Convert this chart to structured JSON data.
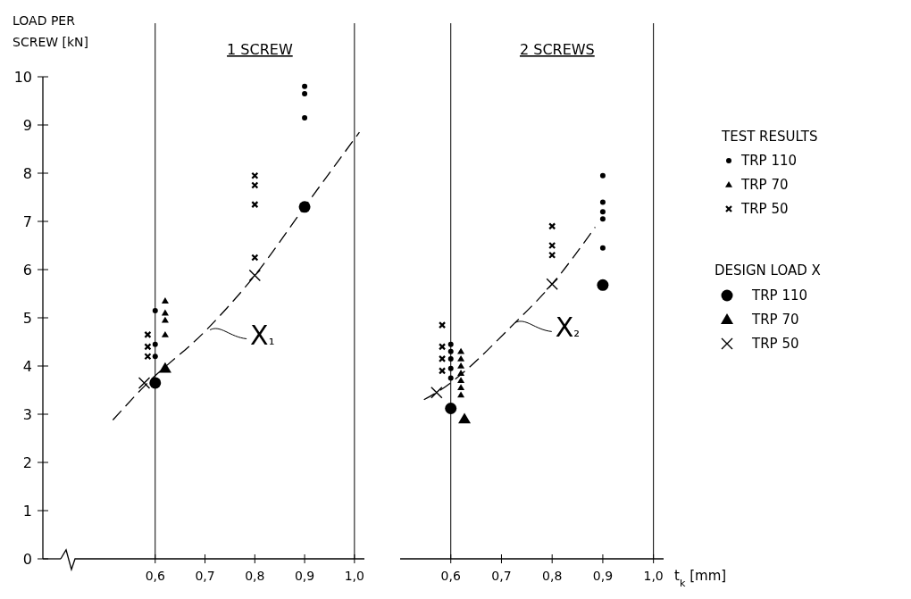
{
  "chart_data": [
    {
      "type": "scatter",
      "title": "1 SCREW",
      "ylabel": "LOAD PER SCREW [kN]",
      "xlim": [
        0.5,
        1.02
      ],
      "ylim": [
        0,
        10
      ],
      "xticks": [
        {
          "value": 0.6,
          "label": "0,6"
        },
        {
          "value": 0.7,
          "label": "0,7"
        },
        {
          "value": 0.8,
          "label": "0,8"
        },
        {
          "value": 0.9,
          "label": "0,9"
        },
        {
          "value": 1.0,
          "label": "1,0"
        }
      ],
      "yticks": [
        0,
        1,
        2,
        3,
        4,
        5,
        6,
        7,
        8,
        9,
        10
      ],
      "ref_lines": [
        {
          "axis": "x",
          "value": 0.6
        },
        {
          "axis": "x",
          "value": 1.0
        }
      ],
      "annotations": [
        {
          "text": "X₁",
          "x": 0.71,
          "y": 4.75
        }
      ],
      "series": [
        {
          "color": "#000000",
          "marker": "circle",
          "x": [
            0.6,
            0.6,
            0.6,
            0.9,
            0.9,
            0.9
          ],
          "values": [
            5.15,
            4.45,
            4.2,
            9.8,
            9.65,
            9.15
          ]
        },
        {
          "color": "#000000",
          "marker": "triangle",
          "x": [
            0.62,
            0.62,
            0.62,
            0.62
          ],
          "values": [
            5.35,
            5.1,
            4.95,
            4.65
          ]
        },
        {
          "color": "#000000",
          "marker": "cross",
          "x": [
            0.585,
            0.585,
            0.585,
            0.8,
            0.8,
            0.8,
            0.8
          ],
          "values": [
            4.65,
            4.4,
            4.2,
            7.95,
            7.75,
            7.35,
            6.25
          ]
        },
        {
          "color": "#000000",
          "marker": "circle",
          "x": [
            0.6,
            0.9
          ],
          "values": [
            3.65,
            7.3
          ]
        },
        {
          "color": "#000000",
          "marker": "triangle",
          "x": [
            0.62
          ],
          "values": [
            3.95
          ]
        },
        {
          "color": "#000000",
          "marker": "cross",
          "x": [
            0.578,
            0.8
          ],
          "values": [
            3.65,
            5.88
          ]
        },
        {
          "type": "line",
          "color": "#000000",
          "marker": "none",
          "line_style": "dashed",
          "x": [
            0.515,
            0.58,
            0.7,
            0.8,
            0.9,
            1.01
          ],
          "values": [
            2.88,
            3.6,
            4.72,
            5.88,
            7.3,
            8.85
          ]
        }
      ]
    },
    {
      "type": "scatter",
      "title": "2 SCREWS",
      "xlabel": "t$_{k}$ [mm]",
      "xlim": [
        0.5,
        1.02
      ],
      "ylim": [
        0,
        10
      ],
      "tick_labels": "x",
      "xticks": [
        {
          "value": 0.6,
          "label": "0,6"
        },
        {
          "value": 0.7,
          "label": "0,7"
        },
        {
          "value": 0.8,
          "label": "0,8"
        },
        {
          "value": 0.9,
          "label": "0,9"
        },
        {
          "value": 1.0,
          "label": "1,0"
        }
      ],
      "legend": "right",
      "legend_title": "TEST RESULTS",
      "ref_lines": [
        {
          "axis": "x",
          "value": 0.6
        },
        {
          "axis": "x",
          "value": 1.0
        }
      ],
      "annotations": [
        {
          "text": "X₂",
          "x": 0.727,
          "y": 4.9
        },
        "DESIGN LOAD X"
      ],
      "series": [
        {
          "name": "TRP 110",
          "color": "#000000",
          "marker": "circle",
          "x": [
            0.6,
            0.6,
            0.6,
            0.6,
            0.6,
            0.9,
            0.9,
            0.9,
            0.9,
            0.9
          ],
          "values": [
            4.45,
            4.3,
            4.15,
            3.95,
            3.75,
            7.95,
            7.4,
            7.2,
            7.05,
            6.45
          ]
        },
        {
          "name": "TRP 70",
          "color": "#000000",
          "marker": "triangle",
          "x": [
            0.62,
            0.62,
            0.62,
            0.62,
            0.62,
            0.62,
            0.62
          ],
          "values": [
            4.3,
            4.15,
            4.0,
            3.85,
            3.7,
            3.55,
            3.4
          ]
        },
        {
          "name": "TRP 50",
          "color": "#000000",
          "marker": "cross",
          "x": [
            0.583,
            0.583,
            0.583,
            0.583,
            0.8,
            0.8,
            0.8
          ],
          "values": [
            4.85,
            4.4,
            4.15,
            3.9,
            6.9,
            6.5,
            6.3
          ]
        },
        {
          "name": "TRP 110",
          "color": "#000000",
          "marker": "circle",
          "x": [
            0.6,
            0.9
          ],
          "values": [
            3.12,
            5.68
          ]
        },
        {
          "name": "TRP 70",
          "color": "#000000",
          "marker": "triangle",
          "x": [
            0.627
          ],
          "values": [
            2.9
          ]
        },
        {
          "name": "TRP 50",
          "color": "#000000",
          "marker": "cross",
          "x": [
            0.572,
            0.8
          ],
          "values": [
            3.45,
            5.7
          ]
        },
        {
          "type": "line",
          "color": "#000000",
          "marker": "none",
          "line_style": "dashed",
          "x": [
            0.547,
            0.572,
            0.727,
            0.8,
            0.885
          ],
          "values": [
            3.3,
            3.45,
            4.9,
            5.7,
            6.88
          ]
        }
      ]
    }
  ]
}
